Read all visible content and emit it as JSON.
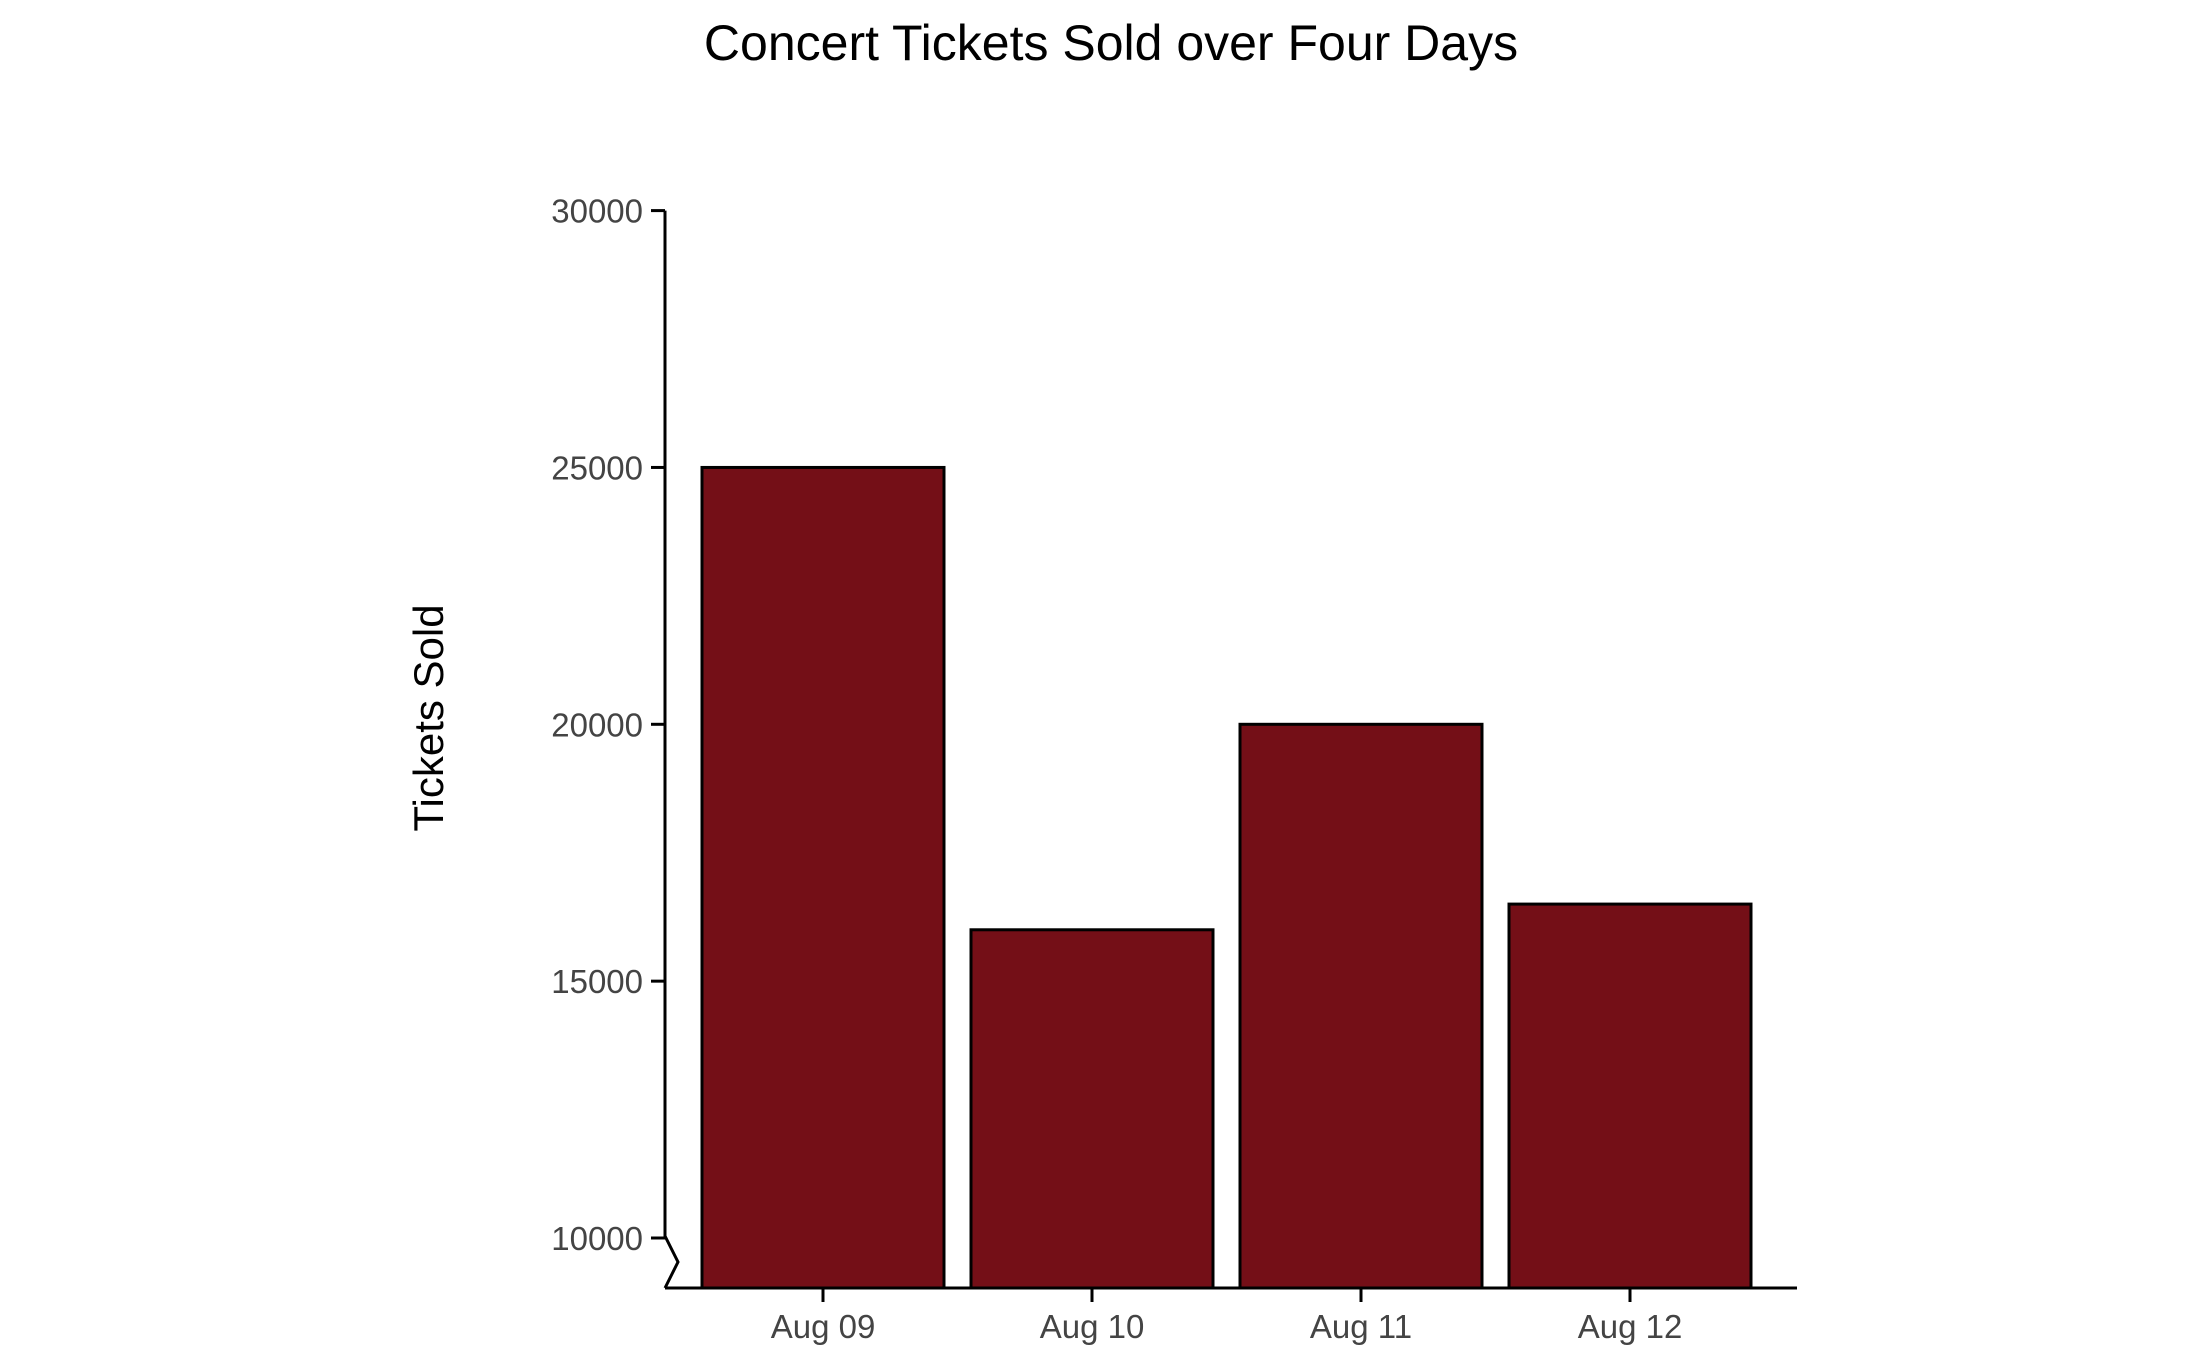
{
  "chart_data": {
    "type": "bar",
    "title": "Concert Tickets Sold over Four Days",
    "xlabel": "",
    "ylabel": "Tickets Sold",
    "categories": [
      "Aug 09",
      "Aug 10",
      "Aug 11",
      "Aug 12"
    ],
    "values": [
      25000,
      16000,
      20000,
      16500
    ],
    "ylim": [
      9000,
      30000
    ],
    "yticks": [
      "10000",
      "15000",
      "20000",
      "25000",
      "30000"
    ],
    "axis_break": true,
    "grid": false,
    "legend": "none",
    "colors": {
      "bar_fill": "#740f17",
      "bar_stroke": "#000000",
      "axis": "#000000"
    }
  }
}
